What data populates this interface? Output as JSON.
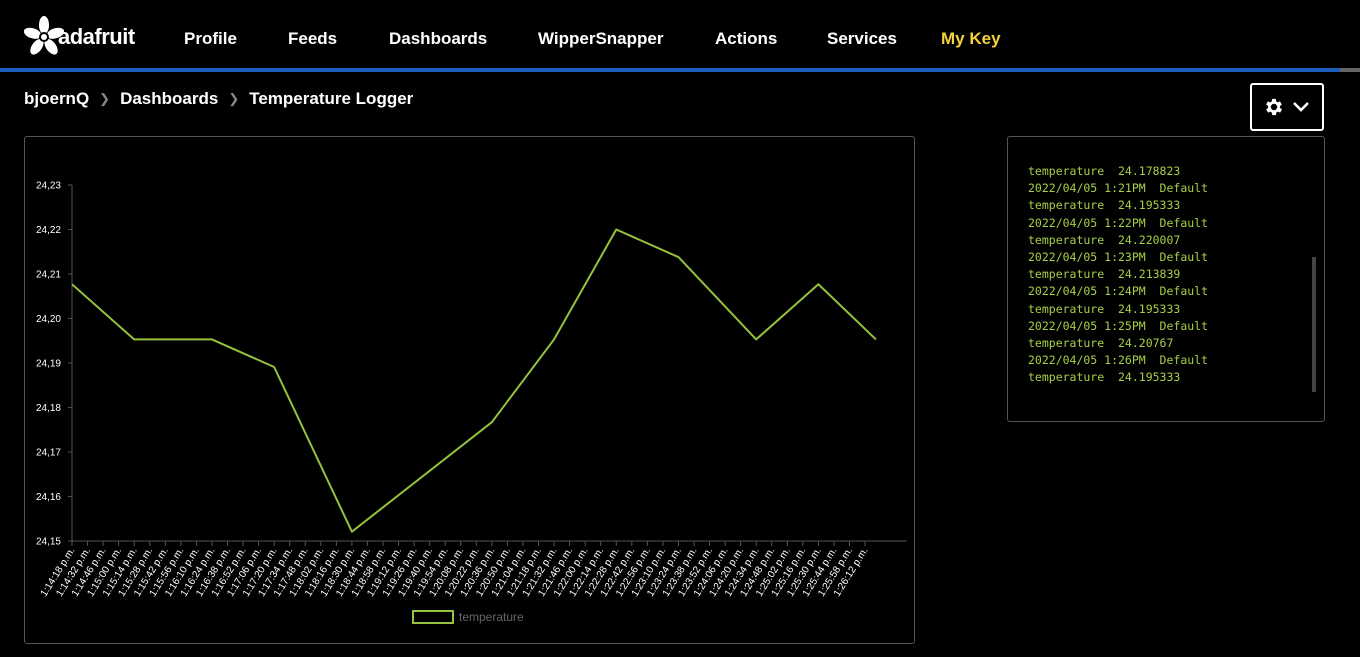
{
  "brand": {
    "name": "adafruit"
  },
  "nav": {
    "items": [
      {
        "label": "Profile"
      },
      {
        "label": "Feeds"
      },
      {
        "label": "Dashboards"
      },
      {
        "label": "WipperSnapper"
      },
      {
        "label": "Actions"
      },
      {
        "label": "Services"
      },
      {
        "label": "My Key"
      }
    ]
  },
  "breadcrumb": {
    "items": [
      "bjoernQ",
      "Dashboards",
      "Temperature Logger"
    ]
  },
  "settings": {
    "icon": "gear-icon",
    "caret": "chevron-down-icon"
  },
  "colors": {
    "line": "#94c23c",
    "log_text": "#a7cf46",
    "accent_key": "#f6d23a",
    "brand_blue": "#1d5fbf"
  },
  "log": {
    "lines": [
      "temperature  24.178823",
      "2022/04/05 1:21PM  Default",
      "temperature  24.195333",
      "2022/04/05 1:22PM  Default",
      "temperature  24.220007",
      "2022/04/05 1:23PM  Default",
      "temperature  24.213839",
      "2022/04/05 1:24PM  Default",
      "temperature  24.195333",
      "2022/04/05 1:25PM  Default",
      "temperature  24.20767",
      "2022/04/05 1:26PM  Default",
      "temperature  24.195333"
    ]
  },
  "chart_data": {
    "type": "line",
    "legend": "temperature",
    "legend_position": "bottom-center",
    "ylim": [
      24.15,
      24.23
    ],
    "y_ticks": [
      "24,15",
      "24,16",
      "24,17",
      "24,18",
      "24,19",
      "24,20",
      "24,21",
      "24,22",
      "24,23"
    ],
    "x_ticks": [
      "1:14:18 p.m.",
      "1:14:32 p.m.",
      "1:14:46 p.m.",
      "1:15:00 p.m.",
      "1:15:14 p.m.",
      "1:15:28 p.m.",
      "1:15:42 p.m.",
      "1:15:56 p.m.",
      "1:16:10 p.m.",
      "1:16:24 p.m.",
      "1:16:38 p.m.",
      "1:16:52 p.m.",
      "1:17:06 p.m.",
      "1:17:20 p.m.",
      "1:17:34 p.m.",
      "1:17:48 p.m.",
      "1:18:02 p.m.",
      "1:18:16 p.m.",
      "1:18:30 p.m.",
      "1:18:44 p.m.",
      "1:18:58 p.m.",
      "1:19:12 p.m.",
      "1:19:26 p.m.",
      "1:19:40 p.m.",
      "1:19:54 p.m.",
      "1:20:08 p.m.",
      "1:20:22 p.m.",
      "1:20:36 p.m.",
      "1:20:50 p.m.",
      "1:21:04 p.m.",
      "1:21:18 p.m.",
      "1:21:32 p.m.",
      "1:21:46 p.m.",
      "1:22:00 p.m.",
      "1:22:14 p.m.",
      "1:22:28 p.m.",
      "1:22:42 p.m.",
      "1:22:56 p.m.",
      "1:23:10 p.m.",
      "1:23:24 p.m.",
      "1:23:38 p.m.",
      "1:23:52 p.m.",
      "1:24:06 p.m.",
      "1:24:20 p.m.",
      "1:24:34 p.m.",
      "1:24:48 p.m.",
      "1:25:02 p.m.",
      "1:25:16 p.m.",
      "1:25:30 p.m.",
      "1:25:44 p.m.",
      "1:25:58 p.m.",
      "1:26:12 p.m."
    ],
    "series": [
      {
        "name": "temperature",
        "points": [
          {
            "x": "1:14:18 p.m.",
            "y": 24.2077
          },
          {
            "x": "1:15:14 p.m.",
            "y": 24.1953
          },
          {
            "x": "1:16:24 p.m.",
            "y": 24.1953
          },
          {
            "x": "1:17:20 p.m.",
            "y": 24.1891
          },
          {
            "x": "1:18:30 p.m.",
            "y": 24.1521
          },
          {
            "x": "1:20:36 p.m.",
            "y": 24.1767
          },
          {
            "x": "1:21:32 p.m.",
            "y": 24.1953
          },
          {
            "x": "1:22:28 p.m.",
            "y": 24.22
          },
          {
            "x": "1:23:24 p.m.",
            "y": 24.2138
          },
          {
            "x": "1:24:34 p.m.",
            "y": 24.1953
          },
          {
            "x": "1:25:30 p.m.",
            "y": 24.2077
          },
          {
            "x": "1:26:26 p.m.",
            "y": 24.1953
          }
        ]
      }
    ]
  }
}
